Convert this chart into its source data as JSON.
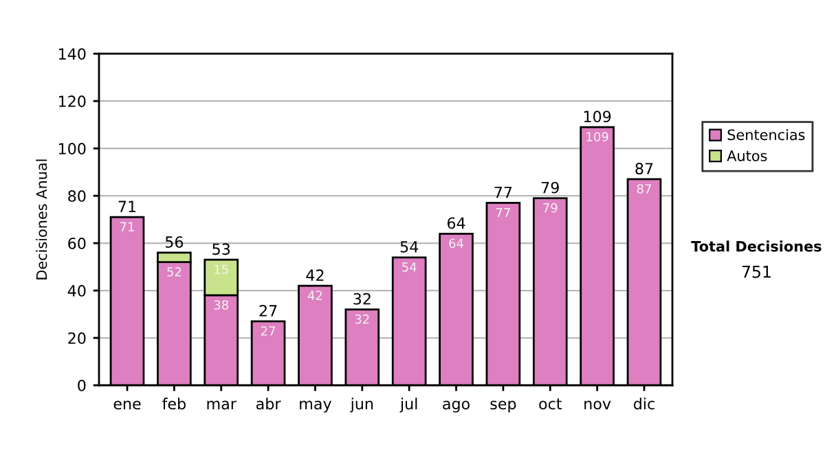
{
  "chart_data": {
    "type": "bar",
    "stacked": true,
    "ylabel": "Decisiones Anual",
    "categories": [
      "ene",
      "feb",
      "mar",
      "abr",
      "may",
      "jun",
      "jul",
      "ago",
      "sep",
      "oct",
      "nov",
      "dic"
    ],
    "series": [
      {
        "name": "Sentencias",
        "color": "#dd7fc0",
        "values": [
          71,
          52,
          38,
          27,
          42,
          32,
          54,
          64,
          77,
          79,
          109,
          87
        ],
        "value_labels": [
          "71",
          "52",
          "38",
          "27",
          "42",
          "32",
          "54",
          "64",
          "77",
          "79",
          "109",
          "87"
        ]
      },
      {
        "name": "Autos",
        "color": "#c8e38c",
        "values": [
          null,
          4,
          15,
          null,
          null,
          null,
          null,
          null,
          null,
          null,
          null,
          null
        ],
        "value_labels": [
          null,
          null,
          "15",
          null,
          null,
          null,
          null,
          null,
          null,
          null,
          null,
          null
        ]
      }
    ],
    "totals": [
      "71",
      "56",
      "53",
      "27",
      "42",
      "32",
      "54",
      "64",
      "77",
      "79",
      "109",
      "87"
    ],
    "ylim": [
      0,
      140
    ],
    "yticks": [
      0,
      20,
      40,
      60,
      80,
      100,
      120,
      140
    ],
    "grid": "y",
    "legend": "right",
    "annotations": [
      "Total Decisiones",
      "751"
    ]
  }
}
